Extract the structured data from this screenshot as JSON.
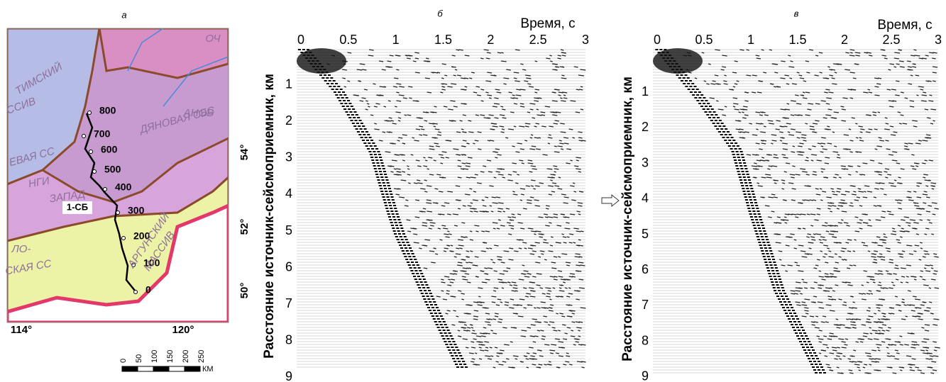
{
  "panels": [
    {
      "label": "а",
      "profile": "1-СБ",
      "profile_marks": [
        "800",
        "700",
        "600",
        "500",
        "400",
        "300",
        "200",
        "100",
        "0"
      ],
      "longitudes": [
        "114°",
        "120°"
      ],
      "latitudes": [
        "54°",
        "52°",
        "50°"
      ],
      "regions": [
        "ТИМСКИЙ",
        "ССИВ",
        "ЕВАЯ СС",
        "НГИ",
        "ЗАПАД",
        "ДЯНОВАЯ СБС",
        "АНОВ",
        "ЛО-",
        "СКАЯ СС",
        "АРГУНСКИЙ",
        "МАССИВ",
        "ОЧ"
      ],
      "scale": {
        "ticks": [
          "0",
          "50",
          "100",
          "150",
          "200",
          "250"
        ],
        "unit": "КМ"
      }
    },
    {
      "label": "б",
      "x_title": "Время, с",
      "x_ticks": [
        "0",
        "0.5",
        "1",
        "1.5",
        "2",
        "2.5",
        "3"
      ],
      "y_title": "Расстояние источник-сейсмоприемник, км",
      "y_ticks": [
        "1",
        "2",
        "3",
        "4",
        "5",
        "6",
        "7",
        "8",
        "9"
      ]
    },
    {
      "label": "в",
      "x_title": "Время, с",
      "x_ticks": [
        "0",
        "0.5",
        "1",
        "1.5",
        "2",
        "2.5",
        "3"
      ],
      "y_title": "Расстояние источник-сейсмоприемник, км",
      "y_ticks": [
        "1",
        "2",
        "3",
        "4",
        "5",
        "6",
        "7",
        "8",
        "9"
      ]
    }
  ]
}
